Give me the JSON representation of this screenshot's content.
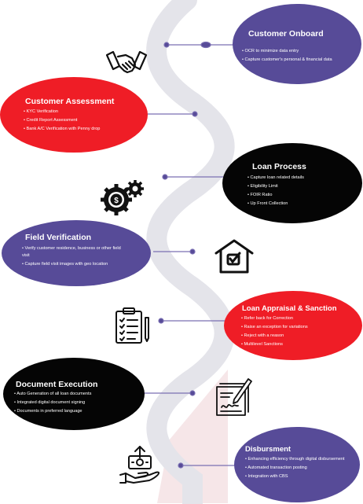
{
  "colors": {
    "purple": "#574b98",
    "red": "#ef1d26",
    "black": "#050505",
    "wave": "#e4e4ea",
    "connector_dot": "#574b98"
  },
  "stages": [
    {
      "id": "customer-onboard",
      "title": "Customer Onboard",
      "color": "purple",
      "items": [
        "OCR to minimize data entry",
        "Capture customer's personal & financial data"
      ],
      "icon": "handshake-icon"
    },
    {
      "id": "customer-assessment",
      "title": "Customer Assessment",
      "color": "red",
      "items": [
        "KYC Verification",
        "Credit Report Assessment",
        "Bank A/C Verification with Penny drop"
      ],
      "icon": ""
    },
    {
      "id": "loan-process",
      "title": "Loan Process",
      "color": "black",
      "items": [
        "Capture loan related details",
        "Eligibility Limit",
        "FOIR Ratio",
        "Up Front Collection"
      ],
      "icon": "gear-dollar-icon"
    },
    {
      "id": "field-verification",
      "title": "Field Verification",
      "color": "purple",
      "items": [
        "Verify customer residence, business or other field visit",
        "Capture field visit images with geo location"
      ],
      "icon": "house-check-icon"
    },
    {
      "id": "loan-appraisal",
      "title": "Loan Appraisal & Sanction",
      "color": "red",
      "items": [
        "Refer back for Correction",
        "Raise an exception for variations",
        "Reject with a reason",
        "Multilevel Sanctions"
      ],
      "icon": "clipboard-checklist-icon"
    },
    {
      "id": "document-execution",
      "title": "Document Execution",
      "color": "black",
      "items": [
        "Auto Generation of all loan documents",
        "Integrated digital document signing",
        "Documents in preferred language"
      ],
      "icon": "document-signing-icon"
    },
    {
      "id": "disbursment",
      "title": "Disbursment",
      "color": "purple",
      "items": [
        "Enhancing efficiency through digital disbursement",
        "Automated transaction posting",
        "Integration with CBS"
      ],
      "icon": "hand-money-icon"
    }
  ]
}
